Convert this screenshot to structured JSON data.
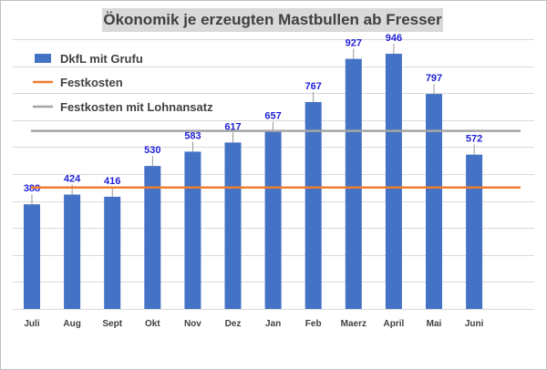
{
  "chart_data": {
    "type": "bar",
    "title": "Ökonomik je erzeugten Mastbullen ab Fresser",
    "categories": [
      "Juli",
      "Aug",
      "Sept",
      "Okt",
      "Nov",
      "Dez",
      "Jan",
      "Feb",
      "Maerz",
      "April",
      "Mai",
      "Juni"
    ],
    "series": [
      {
        "name": "DkfL mit Grufu",
        "type": "bar",
        "values": [
          388,
          424,
          416,
          530,
          583,
          617,
          657,
          767,
          927,
          946,
          797,
          572
        ],
        "color": "#4472c4"
      }
    ],
    "reference_lines": [
      {
        "name": "Festkosten",
        "value": 450,
        "color": "#ed7d31"
      },
      {
        "name": "Festkosten mit Lohnansatz",
        "value": 660,
        "color": "#a5a5a5"
      }
    ],
    "ylim": [
      0,
      1000
    ],
    "y_gridlines": 10,
    "y_axis_labels_shown": false,
    "data_label_color": "#1f1fd6",
    "grid": true,
    "legend_position": "top-left"
  }
}
